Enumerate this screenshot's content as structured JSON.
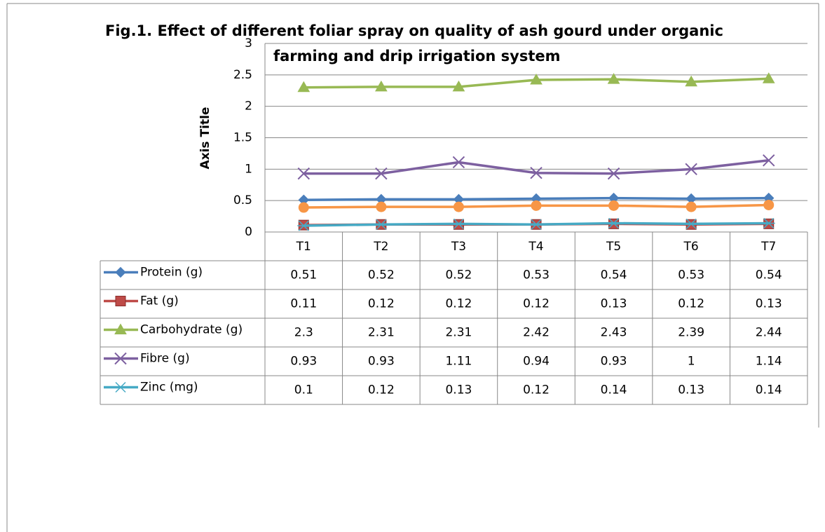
{
  "chart_data": {
    "type": "line",
    "title": [
      "Fig.1. Effect of different foliar spray on quality of ash gourd under organic",
      "farming and drip irrigation system"
    ],
    "y_label": "Axis Title",
    "categories": [
      "T1",
      "T2",
      "T3",
      "T4",
      "T5",
      "T6",
      "T7"
    ],
    "ylim": [
      0,
      3
    ],
    "yticks": [
      0,
      0.5,
      1,
      1.5,
      2,
      2.5,
      3
    ],
    "grid": true,
    "series": [
      {
        "name": "Protein (g)",
        "color": "#4a7ebb",
        "marker": "diamond",
        "values": [
          0.51,
          0.52,
          0.52,
          0.53,
          0.54,
          0.53,
          0.54
        ]
      },
      {
        "name": "Fat (g)",
        "color": "#be4b48",
        "marker": "square",
        "values": [
          0.11,
          0.12,
          0.12,
          0.12,
          0.13,
          0.12,
          0.13
        ]
      },
      {
        "name": "Carbohydrate (g)",
        "color": "#98b954",
        "marker": "triangle",
        "values": [
          2.3,
          2.31,
          2.31,
          2.42,
          2.43,
          2.39,
          2.44
        ]
      },
      {
        "name": "Fibre (g)",
        "color": "#7d60a0",
        "marker": "x",
        "values": [
          0.93,
          0.93,
          1.11,
          0.94,
          0.93,
          1,
          1.14
        ]
      },
      {
        "name": "Zinc (mg)",
        "color": "#46aac5",
        "marker": "star",
        "values": [
          0.1,
          0.12,
          0.13,
          0.12,
          0.14,
          0.13,
          0.14
        ]
      },
      {
        "color": "#f79646",
        "marker": "circle",
        "values": [
          0.39,
          0.4,
          0.4,
          0.42,
          0.42,
          0.4,
          0.43
        ]
      }
    ]
  }
}
